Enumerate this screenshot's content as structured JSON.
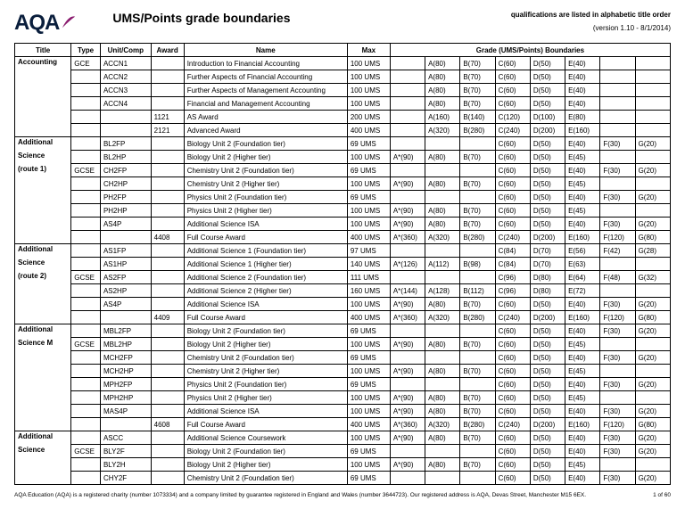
{
  "header": {
    "logo_text": "AQA",
    "logo_color": "#0a1e3c",
    "swoosh_color": "#8a1a6e",
    "main_title": "UMS/Points grade boundaries",
    "qual_note": "qualifications are listed in alphabetic title order",
    "version": "(version 1.10  -  8/1/2014)"
  },
  "columns": {
    "title": "Title",
    "type": "Type",
    "unit": "Unit/Comp",
    "award": "Award",
    "name": "Name",
    "max": "Max",
    "grades_header": "Grade (UMS/Points) Boundaries"
  },
  "sections": [
    {
      "title": "Accounting",
      "type": "GCE",
      "rows": [
        {
          "unit": "ACCN1",
          "award": "",
          "name": "Introduction to Financial Accounting",
          "max": "100 UMS",
          "g": [
            "",
            "A(80)",
            "B(70)",
            "C(60)",
            "D(50)",
            "E(40)",
            "",
            ""
          ]
        },
        {
          "unit": "ACCN2",
          "award": "",
          "name": "Further Aspects of Financial Accounting",
          "max": "100 UMS",
          "g": [
            "",
            "A(80)",
            "B(70)",
            "C(60)",
            "D(50)",
            "E(40)",
            "",
            ""
          ]
        },
        {
          "unit": "ACCN3",
          "award": "",
          "name": "Further Aspects of Management Accounting",
          "max": "100 UMS",
          "g": [
            "",
            "A(80)",
            "B(70)",
            "C(60)",
            "D(50)",
            "E(40)",
            "",
            ""
          ]
        },
        {
          "unit": "ACCN4",
          "award": "",
          "name": "Financial and Management Accounting",
          "max": "100 UMS",
          "g": [
            "",
            "A(80)",
            "B(70)",
            "C(60)",
            "D(50)",
            "E(40)",
            "",
            ""
          ]
        },
        {
          "unit": "",
          "award": "1121",
          "name": "AS Award",
          "max": "200 UMS",
          "g": [
            "",
            "A(160)",
            "B(140)",
            "C(120)",
            "D(100)",
            "E(80)",
            "",
            ""
          ]
        },
        {
          "unit": "",
          "award": "2121",
          "name": "Advanced Award",
          "max": "400 UMS",
          "g": [
            "",
            "A(320)",
            "B(280)",
            "C(240)",
            "D(200)",
            "E(160)",
            "",
            ""
          ]
        }
      ]
    },
    {
      "title": "Additional Science (route 1)",
      "title_lines": [
        "Additional",
        "Science",
        "(route 1)"
      ],
      "type": "GCSE",
      "type_row_index": 2,
      "rows": [
        {
          "unit": "BL2FP",
          "award": "",
          "name": "Biology Unit 2 (Foundation tier)",
          "max": "69 UMS",
          "g": [
            "",
            "",
            "",
            "C(60)",
            "D(50)",
            "E(40)",
            "F(30)",
            "G(20)"
          ]
        },
        {
          "unit": "BL2HP",
          "award": "",
          "name": "Biology Unit 2 (Higher tier)",
          "max": "100 UMS",
          "g": [
            "A*(90)",
            "A(80)",
            "B(70)",
            "C(60)",
            "D(50)",
            "E(45)",
            "",
            ""
          ]
        },
        {
          "unit": "CH2FP",
          "award": "",
          "name": "Chemistry Unit 2 (Foundation tier)",
          "max": "69 UMS",
          "g": [
            "",
            "",
            "",
            "C(60)",
            "D(50)",
            "E(40)",
            "F(30)",
            "G(20)"
          ]
        },
        {
          "unit": "CH2HP",
          "award": "",
          "name": "Chemistry Unit 2 (Higher tier)",
          "max": "100 UMS",
          "g": [
            "A*(90)",
            "A(80)",
            "B(70)",
            "C(60)",
            "D(50)",
            "E(45)",
            "",
            ""
          ]
        },
        {
          "unit": "PH2FP",
          "award": "",
          "name": "Physics Unit 2 (Foundation tier)",
          "max": "69 UMS",
          "g": [
            "",
            "",
            "",
            "C(60)",
            "D(50)",
            "E(40)",
            "F(30)",
            "G(20)"
          ]
        },
        {
          "unit": "PH2HP",
          "award": "",
          "name": "Physics Unit 2 (Higher tier)",
          "max": "100 UMS",
          "g": [
            "A*(90)",
            "A(80)",
            "B(70)",
            "C(60)",
            "D(50)",
            "E(45)",
            "",
            ""
          ]
        },
        {
          "unit": "AS4P",
          "award": "",
          "name": "Additional Science ISA",
          "max": "100 UMS",
          "g": [
            "A*(90)",
            "A(80)",
            "B(70)",
            "C(60)",
            "D(50)",
            "E(40)",
            "F(30)",
            "G(20)"
          ]
        },
        {
          "unit": "",
          "award": "4408",
          "name": "Full Course Award",
          "max": "400 UMS",
          "g": [
            "A*(360)",
            "A(320)",
            "B(280)",
            "C(240)",
            "D(200)",
            "E(160)",
            "F(120)",
            "G(80)"
          ]
        }
      ]
    },
    {
      "title": "Additional Science (route 2)",
      "title_lines": [
        "Additional",
        "Science",
        "(route 2)"
      ],
      "type": "GCSE",
      "type_row_index": 2,
      "rows": [
        {
          "unit": "AS1FP",
          "award": "",
          "name": "Additional Science 1 (Foundation tier)",
          "max": "97 UMS",
          "g": [
            "",
            "",
            "",
            "C(84)",
            "D(70)",
            "E(56)",
            "F(42)",
            "G(28)"
          ]
        },
        {
          "unit": "AS1HP",
          "award": "",
          "name": "Additional Science 1 (Higher tier)",
          "max": "140 UMS",
          "g": [
            "A*(126)",
            "A(112)",
            "B(98)",
            "C(84)",
            "D(70)",
            "E(63)",
            "",
            ""
          ]
        },
        {
          "unit": "AS2FP",
          "award": "",
          "name": "Additional Science 2 (Foundation tier)",
          "max": "111 UMS",
          "g": [
            "",
            "",
            "",
            "C(96)",
            "D(80)",
            "E(64)",
            "F(48)",
            "G(32)"
          ]
        },
        {
          "unit": "AS2HP",
          "award": "",
          "name": "Additional Science 2 (Higher tier)",
          "max": "160 UMS",
          "g": [
            "A*(144)",
            "A(128)",
            "B(112)",
            "C(96)",
            "D(80)",
            "E(72)",
            "",
            ""
          ]
        },
        {
          "unit": "AS4P",
          "award": "",
          "name": "Additional Science ISA",
          "max": "100 UMS",
          "g": [
            "A*(90)",
            "A(80)",
            "B(70)",
            "C(60)",
            "D(50)",
            "E(40)",
            "F(30)",
            "G(20)"
          ]
        },
        {
          "unit": "",
          "award": "4409",
          "name": "Full Course Award",
          "max": "400 UMS",
          "g": [
            "A*(360)",
            "A(320)",
            "B(280)",
            "C(240)",
            "D(200)",
            "E(160)",
            "F(120)",
            "G(80)"
          ]
        }
      ]
    },
    {
      "title": "Additional Science M",
      "title_lines": [
        "Additional",
        "Science M"
      ],
      "type": "GCSE",
      "type_row_index": 1,
      "rows": [
        {
          "unit": "MBL2FP",
          "award": "",
          "name": "Biology Unit 2 (Foundation tier)",
          "max": "69 UMS",
          "g": [
            "",
            "",
            "",
            "C(60)",
            "D(50)",
            "E(40)",
            "F(30)",
            "G(20)"
          ]
        },
        {
          "unit": "MBL2HP",
          "award": "",
          "name": "Biology Unit 2 (Higher tier)",
          "max": "100 UMS",
          "g": [
            "A*(90)",
            "A(80)",
            "B(70)",
            "C(60)",
            "D(50)",
            "E(45)",
            "",
            ""
          ]
        },
        {
          "unit": "MCH2FP",
          "award": "",
          "name": "Chemistry Unit 2 (Foundation tier)",
          "max": "69 UMS",
          "g": [
            "",
            "",
            "",
            "C(60)",
            "D(50)",
            "E(40)",
            "F(30)",
            "G(20)"
          ]
        },
        {
          "unit": "MCH2HP",
          "award": "",
          "name": "Chemistry Unit 2 (Higher tier)",
          "max": "100 UMS",
          "g": [
            "A*(90)",
            "A(80)",
            "B(70)",
            "C(60)",
            "D(50)",
            "E(45)",
            "",
            ""
          ]
        },
        {
          "unit": "MPH2FP",
          "award": "",
          "name": "Physics Unit 2 (Foundation tier)",
          "max": "69 UMS",
          "g": [
            "",
            "",
            "",
            "C(60)",
            "D(50)",
            "E(40)",
            "F(30)",
            "G(20)"
          ]
        },
        {
          "unit": "MPH2HP",
          "award": "",
          "name": "Physics Unit 2 (Higher tier)",
          "max": "100 UMS",
          "g": [
            "A*(90)",
            "A(80)",
            "B(70)",
            "C(60)",
            "D(50)",
            "E(45)",
            "",
            ""
          ]
        },
        {
          "unit": "MAS4P",
          "award": "",
          "name": "Additional Science ISA",
          "max": "100 UMS",
          "g": [
            "A*(90)",
            "A(80)",
            "B(70)",
            "C(60)",
            "D(50)",
            "E(40)",
            "F(30)",
            "G(20)"
          ]
        },
        {
          "unit": "",
          "award": "4608",
          "name": "Full Course Award",
          "max": "400 UMS",
          "g": [
            "A*(360)",
            "A(320)",
            "B(280)",
            "C(240)",
            "D(200)",
            "E(160)",
            "F(120)",
            "G(80)"
          ]
        }
      ]
    },
    {
      "title": "Additional Science",
      "title_lines": [
        "Additional",
        "Science"
      ],
      "type": "GCSE",
      "type_row_index": 1,
      "rows": [
        {
          "unit": "ASCC",
          "award": "",
          "name": "Additional Science Coursework",
          "max": "100 UMS",
          "g": [
            "A*(90)",
            "A(80)",
            "B(70)",
            "C(60)",
            "D(50)",
            "E(40)",
            "F(30)",
            "G(20)"
          ]
        },
        {
          "unit": "BLY2F",
          "award": "",
          "name": "Biology Unit 2 (Foundation tier)",
          "max": "69 UMS",
          "g": [
            "",
            "",
            "",
            "C(60)",
            "D(50)",
            "E(40)",
            "F(30)",
            "G(20)"
          ]
        },
        {
          "unit": "BLY2H",
          "award": "",
          "name": "Biology Unit 2 (Higher tier)",
          "max": "100 UMS",
          "g": [
            "A*(90)",
            "A(80)",
            "B(70)",
            "C(60)",
            "D(50)",
            "E(45)",
            "",
            ""
          ]
        },
        {
          "unit": "CHY2F",
          "award": "",
          "name": "Chemistry Unit 2 (Foundation tier)",
          "max": "69 UMS",
          "g": [
            "",
            "",
            "",
            "C(60)",
            "D(50)",
            "E(40)",
            "F(30)",
            "G(20)"
          ]
        }
      ]
    }
  ],
  "footer": {
    "left": "AQA Education (AQA) is a registered charity (number 1073334) and a company limited by guarantee registered in England and Wales (number 3644723). Our registered address is AQA, Devas Street, Manchester M15 6EX.",
    "right": "1 of  60"
  }
}
